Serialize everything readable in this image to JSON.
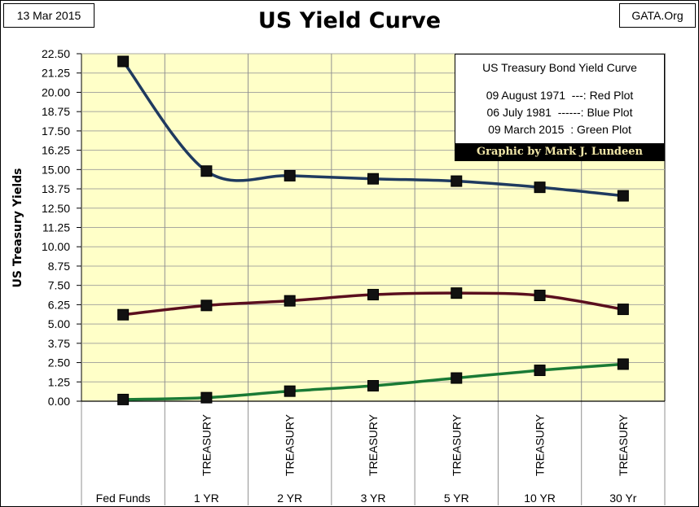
{
  "header": {
    "date": "13 Mar 2015",
    "source": "GATA.Org",
    "title": "US Yield Curve"
  },
  "legend": {
    "title": "US Treasury Bond Yield Curve",
    "lines": [
      "09 August 1971  ---: Red Plot",
      "06 July 1981  ------: Blue Plot",
      "09 March 2015  : Green Plot"
    ],
    "credit": "Graphic by Mark J. Lundeen"
  },
  "chart_data": {
    "type": "line",
    "title": "US Yield Curve",
    "ylabel": "US Treasury Yields",
    "xlabel": "",
    "ylim": [
      0,
      22.5
    ],
    "yticks": [
      "0.00",
      "1.25",
      "2.50",
      "3.75",
      "5.00",
      "6.25",
      "7.50",
      "8.75",
      "10.00",
      "11.25",
      "12.50",
      "13.75",
      "15.00",
      "16.25",
      "17.50",
      "18.75",
      "20.00",
      "21.25",
      "22.50"
    ],
    "categories": [
      "Fed Funds",
      "1 YR",
      "2 YR",
      "3 YR",
      "5 YR",
      "10 YR",
      "30 Yr"
    ],
    "category_sublabels": [
      "",
      "TREASURY",
      "TREASURY",
      "TREASURY",
      "TREASURY",
      "TREASURY",
      "TREASURY"
    ],
    "grid": true,
    "background": "#ffffc8",
    "series": [
      {
        "date": "06 July 1981",
        "color": "#1f3a5f",
        "values": [
          22.0,
          14.9,
          14.6,
          14.4,
          14.25,
          13.85,
          13.3
        ]
      },
      {
        "date": "09 August 1971",
        "color": "#5a0f1e",
        "values": [
          5.6,
          6.2,
          6.5,
          6.9,
          7.0,
          6.85,
          5.95
        ]
      },
      {
        "date": "09 March 2015",
        "color": "#1a7a35",
        "values": [
          0.11,
          0.23,
          0.65,
          1.0,
          1.5,
          2.0,
          2.4
        ]
      }
    ]
  }
}
